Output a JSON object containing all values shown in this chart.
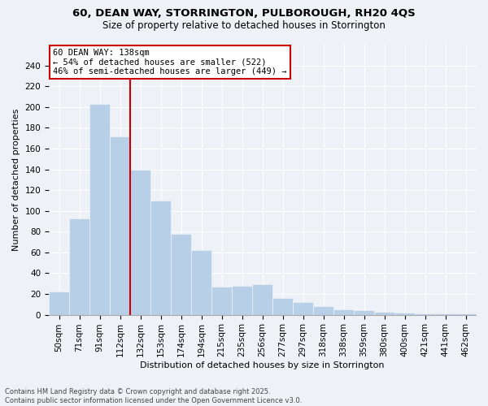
{
  "title_line1": "60, DEAN WAY, STORRINGTON, PULBOROUGH, RH20 4QS",
  "title_line2": "Size of property relative to detached houses in Storrington",
  "xlabel": "Distribution of detached houses by size in Storrington",
  "ylabel": "Number of detached properties",
  "categories": [
    "50sqm",
    "71sqm",
    "91sqm",
    "112sqm",
    "132sqm",
    "153sqm",
    "174sqm",
    "194sqm",
    "215sqm",
    "235sqm",
    "256sqm",
    "277sqm",
    "297sqm",
    "318sqm",
    "338sqm",
    "359sqm",
    "380sqm",
    "400sqm",
    "421sqm",
    "441sqm",
    "462sqm"
  ],
  "values": [
    22,
    93,
    203,
    172,
    140,
    110,
    78,
    62,
    27,
    28,
    29,
    16,
    12,
    8,
    5,
    4,
    3,
    2,
    1,
    1,
    1
  ],
  "bar_color": "#b8cfe8",
  "vline_pos": 3.5,
  "property_line_color": "#cc0000",
  "annotation_title": "60 DEAN WAY: 138sqm",
  "annotation_line1": "← 54% of detached houses are smaller (522)",
  "annotation_line2": "46% of semi-detached houses are larger (449) →",
  "ylim": [
    0,
    260
  ],
  "yticks": [
    0,
    20,
    40,
    60,
    80,
    100,
    120,
    140,
    160,
    180,
    200,
    220,
    240
  ],
  "footer_line1": "Contains HM Land Registry data © Crown copyright and database right 2025.",
  "footer_line2": "Contains public sector information licensed under the Open Government Licence v3.0.",
  "background_color": "#eef2f7",
  "grid_color": "#ffffff",
  "title_fontsize": 9.5,
  "subtitle_fontsize": 8.5,
  "axis_label_fontsize": 8,
  "tick_fontsize": 7.5,
  "footer_fontsize": 6
}
